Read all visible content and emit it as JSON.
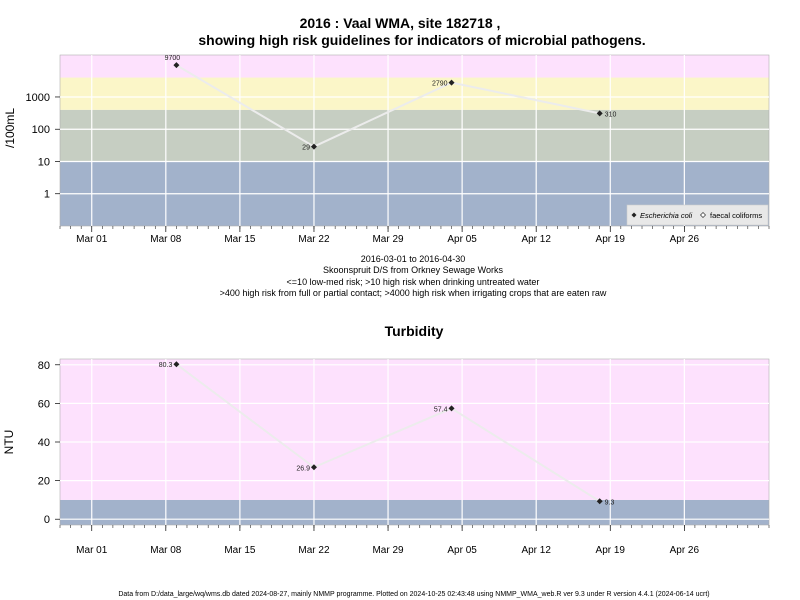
{
  "chart_data": [
    {
      "type": "line",
      "title_line1": "2016 : Vaal WMA, site 182718 ,",
      "title_line2": "showing high risk guidelines for indicators of microbial pathogens.",
      "ylabel": "/100mL",
      "yscale": "log",
      "ylim": [
        0.1,
        20000
      ],
      "yticks": [
        "1",
        "10",
        "100",
        "1000"
      ],
      "xticks": [
        "Mar 01",
        "Mar 08",
        "Mar 15",
        "Mar 22",
        "Mar 29",
        "Apr 05",
        "Apr 12",
        "Apr 19",
        "Apr 26"
      ],
      "xlim": [
        "2016-02-27",
        "2016-05-04"
      ],
      "bands": [
        {
          "from": 0.1,
          "to": 10,
          "color": "#a2b2cb"
        },
        {
          "from": 10,
          "to": 400,
          "color": "#c6cec2"
        },
        {
          "from": 400,
          "to": 4000,
          "color": "#fbf6c8"
        },
        {
          "from": 4000,
          "to": 20000,
          "color": "#fde1fd"
        }
      ],
      "series": [
        {
          "name": "Escherichia coli",
          "marker": "filled-diamond",
          "points": [
            {
              "x": "2016-03-09",
              "y": 9700,
              "label": "9700"
            },
            {
              "x": "2016-03-22",
              "y": 29,
              "label": "29"
            },
            {
              "x": "2016-04-04",
              "y": 2790,
              "label": "2790"
            },
            {
              "x": "2016-04-18",
              "y": 310,
              "label": "310"
            }
          ]
        }
      ],
      "legend": {
        "position": "bottom-right",
        "entries": [
          "Escherichia coli",
          "faecal coliforms"
        ]
      },
      "subtitle_lines": [
        "2016-03-01 to 2016-04-30",
        "Skoonspruit D/S from Orkney Sewage Works",
        "<=10 low-med risk; >10 high risk when drinking untreated water",
        ">400 high risk from full or partial contact; >4000 high risk when irrigating crops that are eaten raw"
      ]
    },
    {
      "type": "line",
      "title": "Turbidity",
      "ylabel": "NTU",
      "ylim": [
        -3,
        83
      ],
      "yticks": [
        "0",
        "20",
        "40",
        "60",
        "80"
      ],
      "xticks": [
        "Mar 01",
        "Mar 08",
        "Mar 15",
        "Mar 22",
        "Mar 29",
        "Apr 05",
        "Apr 12",
        "Apr 19",
        "Apr 26"
      ],
      "xlim": [
        "2016-02-27",
        "2016-05-04"
      ],
      "bands": [
        {
          "from": -3,
          "to": 10,
          "color": "#a2b2cb"
        },
        {
          "from": 10,
          "to": 83,
          "color": "#fde1fd"
        }
      ],
      "series": [
        {
          "name": "Turbidity",
          "marker": "filled-diamond",
          "points": [
            {
              "x": "2016-03-09",
              "y": 80.3,
              "label": "80.3"
            },
            {
              "x": "2016-03-22",
              "y": 26.9,
              "label": "26.9"
            },
            {
              "x": "2016-04-04",
              "y": 57.4,
              "label": "57.4"
            },
            {
              "x": "2016-04-18",
              "y": 9.3,
              "label": "9.3"
            }
          ]
        }
      ]
    }
  ],
  "footer": "Data from D:/data_large/wq/wms.db dated 2024-08-27, mainly NMMP programme. Plotted on 2024-10-25 02:43:48 using NMMP_WMA_web.R ver 9.3 under R version 4.4.1 (2024-06-14 ucrt)"
}
